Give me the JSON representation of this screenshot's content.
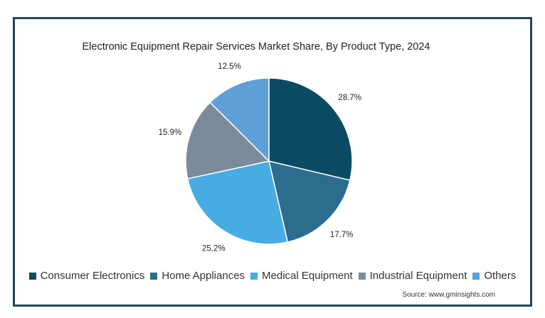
{
  "chart_data": {
    "type": "pie",
    "title": "Electronic Equipment Repair Services Market Share, By Product Type, 2024",
    "slices": [
      {
        "label": "Consumer Electronics",
        "value": 28.7,
        "display": "28.7%",
        "color": "#0b4a63"
      },
      {
        "label": "Home Appliances",
        "value": 17.7,
        "display": "17.7%",
        "color": "#2c6d8f"
      },
      {
        "label": "Medical Equipment",
        "value": 25.2,
        "display": "25.2%",
        "color": "#47ace2"
      },
      {
        "label": "Industrial Equipment",
        "value": 15.9,
        "display": "15.9%",
        "color": "#7a8b9b"
      },
      {
        "label": "Others",
        "value": 12.5,
        "display": "12.5%",
        "color": "#5f9fd8"
      }
    ],
    "legend_position": "bottom"
  },
  "source": "Source: www.gminsights.com",
  "frame_color": "#1f4a57"
}
